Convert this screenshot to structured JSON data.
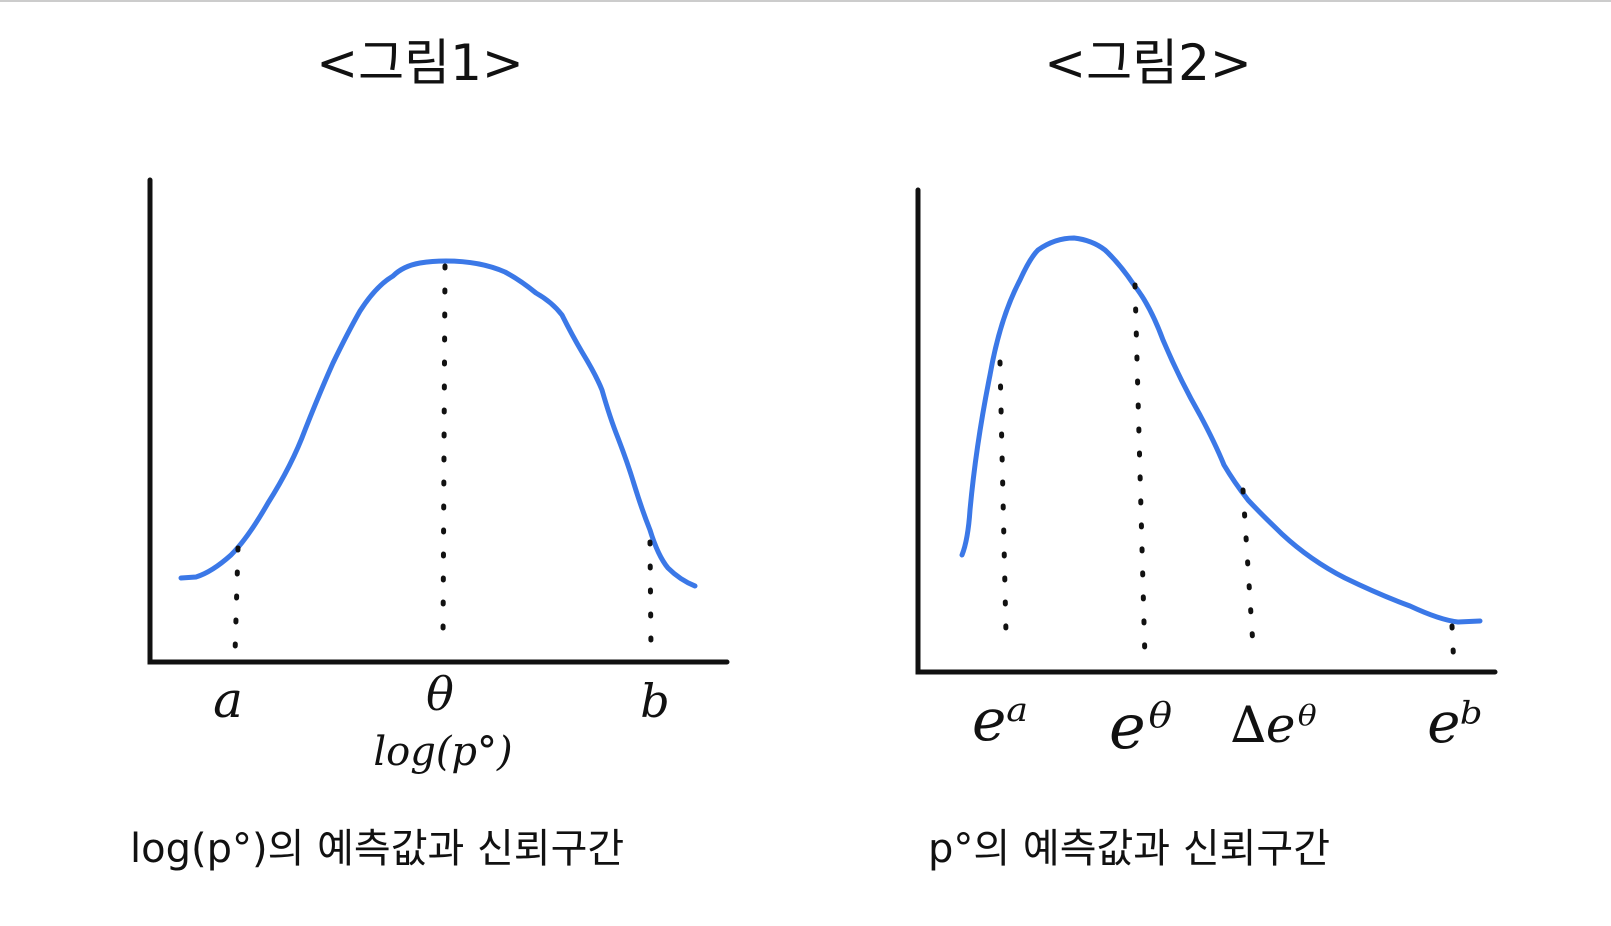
{
  "figure1": {
    "title": "<그림1>",
    "tick_labels": {
      "a": "a",
      "theta": "θ",
      "b": "b"
    },
    "axis_label": "log(p°)",
    "caption": "log(p°)의  예측값과 신뢰구간"
  },
  "figure2": {
    "title": "<그림2>",
    "tick_labels": {
      "ea": "eᵃ",
      "etheta": "eᶿ",
      "deltaetheta": "∆eᶿ",
      "eb": "eᵇ"
    },
    "caption": "p°의  예측값과  신뢰구간"
  },
  "colors": {
    "curve": "#3b78e7",
    "ink": "#111111"
  }
}
